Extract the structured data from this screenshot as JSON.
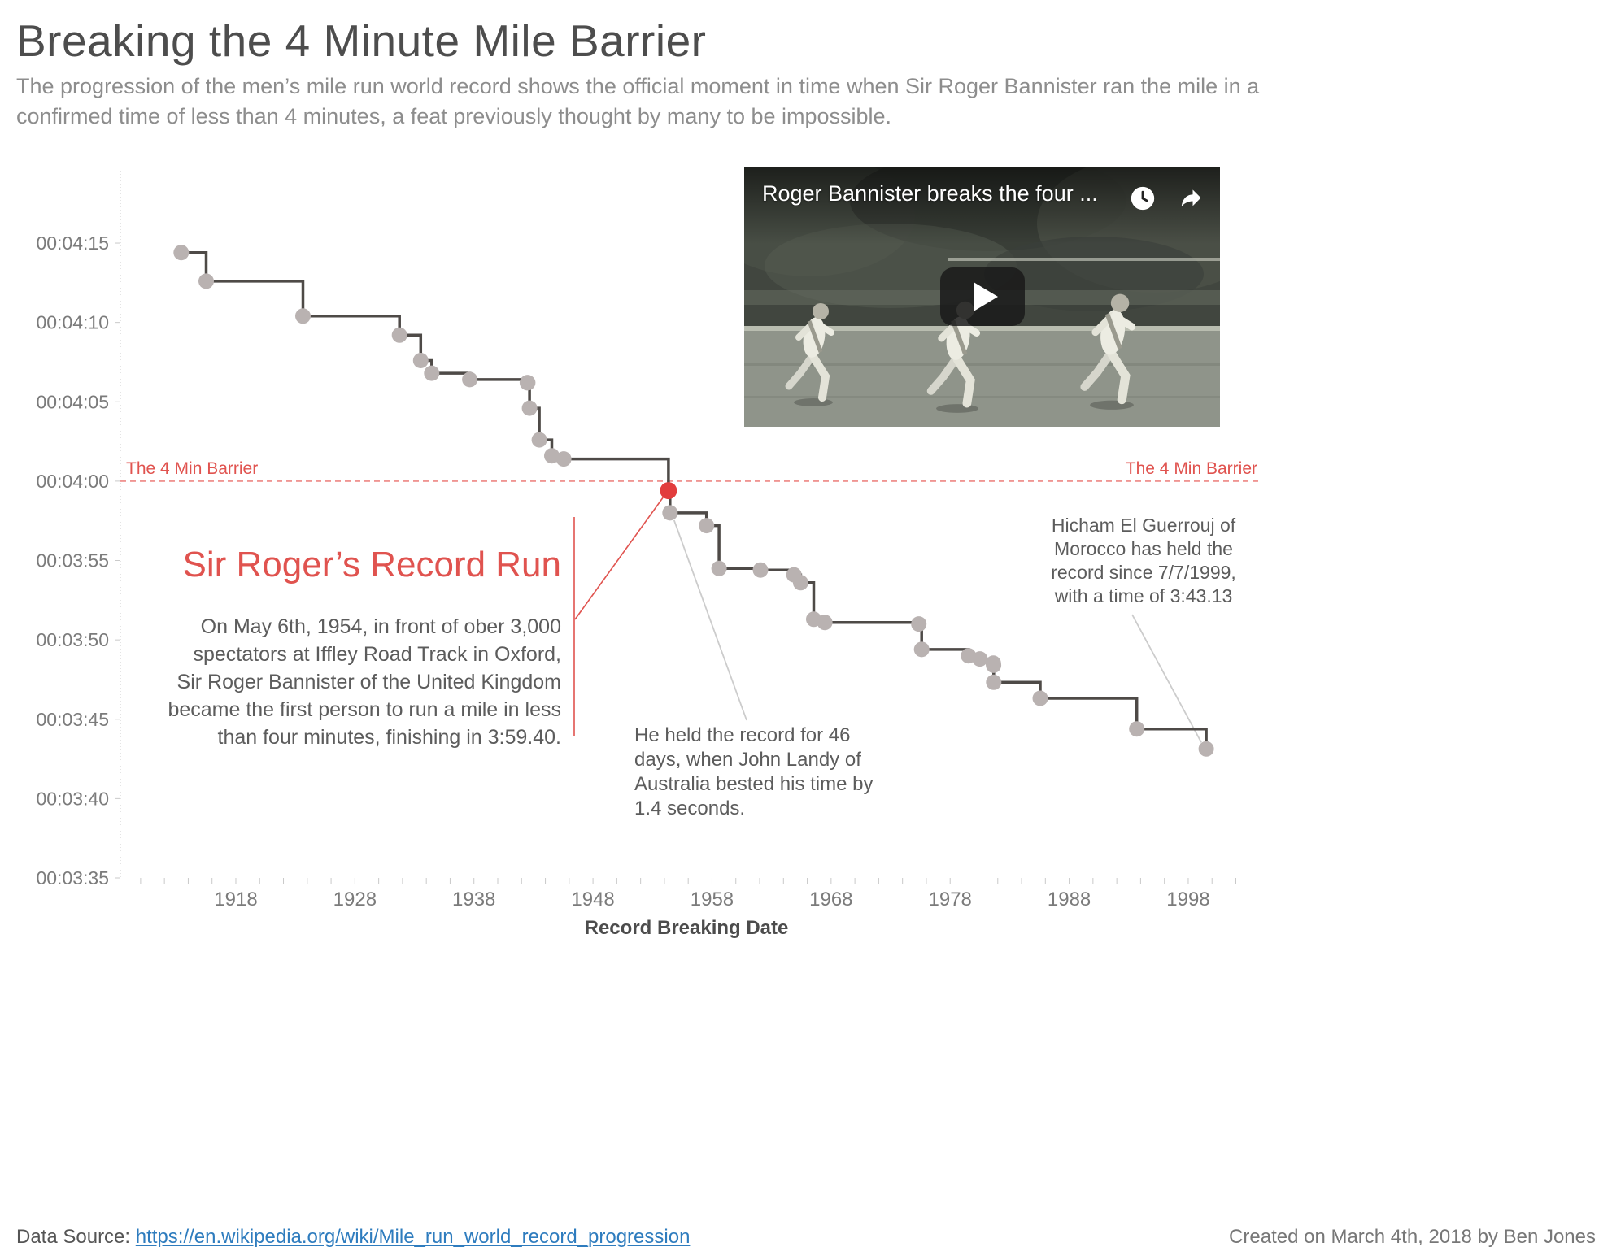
{
  "page": {
    "title": "Breaking the 4 Minute Mile Barrier",
    "subtitle": "The progression of the men’s mile run world record shows the official moment in time when Sir Roger Bannister ran the mile in a\nconfirmed time of less than 4 minutes, a feat previously thought by many to be impossible."
  },
  "video": {
    "title": "Roger Bannister breaks the four ..."
  },
  "chart_data": {
    "type": "line",
    "interpolation": "step-after",
    "title": "",
    "xlabel": "Record Breaking Date",
    "ylabel": "",
    "grid": false,
    "legend": false,
    "x_ticks": [
      "1918",
      "1928",
      "1938",
      "1948",
      "1958",
      "1968",
      "1978",
      "1988",
      "1998"
    ],
    "x_tick_years": [
      1918,
      1928,
      1938,
      1948,
      1958,
      1968,
      1978,
      1988,
      1998
    ],
    "x_minor": {
      "start": 1910,
      "end": 2002,
      "step": 2
    },
    "xlim": [
      1908.3,
      2003.4
    ],
    "y_ticks": [
      {
        "label": "00:04:15",
        "seconds": 255
      },
      {
        "label": "00:04:10",
        "seconds": 250
      },
      {
        "label": "00:04:05",
        "seconds": 245
      },
      {
        "label": "00:04:00",
        "seconds": 240
      },
      {
        "label": "00:03:55",
        "seconds": 235
      },
      {
        "label": "00:03:50",
        "seconds": 230
      },
      {
        "label": "00:03:45",
        "seconds": 225
      },
      {
        "label": "00:03:40",
        "seconds": 220
      },
      {
        "label": "00:03:35",
        "seconds": 215
      }
    ],
    "ylim_seconds": [
      215,
      259.56
    ],
    "barrier": {
      "seconds": 240,
      "label": "The 4 Min Barrier"
    },
    "highlight_index": 13,
    "points": [
      {
        "year": 1913.41,
        "seconds": 254.4,
        "time": "4:14.4"
      },
      {
        "year": 1915.51,
        "seconds": 252.6,
        "time": "4:12.6"
      },
      {
        "year": 1923.64,
        "seconds": 250.4,
        "time": "4:10.4"
      },
      {
        "year": 1931.75,
        "seconds": 249.2,
        "time": "4:09.2"
      },
      {
        "year": 1933.53,
        "seconds": 247.6,
        "time": "4:07.6"
      },
      {
        "year": 1934.45,
        "seconds": 246.8,
        "time": "4:06.8"
      },
      {
        "year": 1937.65,
        "seconds": 246.4,
        "time": "4:06.4"
      },
      {
        "year": 1942.49,
        "seconds": 246.2,
        "time": "4:06.2"
      },
      {
        "year": 1942.52,
        "seconds": 246.2,
        "time": "4:06.2"
      },
      {
        "year": 1942.67,
        "seconds": 244.6,
        "time": "4:04.6"
      },
      {
        "year": 1943.49,
        "seconds": 242.6,
        "time": "4:02.6"
      },
      {
        "year": 1944.54,
        "seconds": 241.6,
        "time": "4:01.6"
      },
      {
        "year": 1945.54,
        "seconds": 241.4,
        "time": "4:01.4"
      },
      {
        "year": 1954.34,
        "seconds": 239.4,
        "time": "3:59.4",
        "highlight": true
      },
      {
        "year": 1954.47,
        "seconds": 238.0,
        "time": "3:58.0"
      },
      {
        "year": 1957.54,
        "seconds": 237.2,
        "time": "3:57.2"
      },
      {
        "year": 1958.59,
        "seconds": 234.5,
        "time": "3:54.5"
      },
      {
        "year": 1962.07,
        "seconds": 234.4,
        "time": "3:54.4"
      },
      {
        "year": 1964.88,
        "seconds": 234.1,
        "time": "3:54.1"
      },
      {
        "year": 1965.44,
        "seconds": 233.6,
        "time": "3:53.6"
      },
      {
        "year": 1966.54,
        "seconds": 231.3,
        "time": "3:51.3"
      },
      {
        "year": 1967.47,
        "seconds": 231.1,
        "time": "3:51.1"
      },
      {
        "year": 1975.37,
        "seconds": 231.0,
        "time": "3:51.0"
      },
      {
        "year": 1975.61,
        "seconds": 229.4,
        "time": "3:49.4"
      },
      {
        "year": 1979.54,
        "seconds": 229.0,
        "time": "3:49.0"
      },
      {
        "year": 1980.5,
        "seconds": 228.8,
        "time": "3:48.8"
      },
      {
        "year": 1981.63,
        "seconds": 228.53,
        "time": "3:48.53"
      },
      {
        "year": 1981.65,
        "seconds": 228.4,
        "time": "3:48.40"
      },
      {
        "year": 1981.66,
        "seconds": 227.33,
        "time": "3:47.33"
      },
      {
        "year": 1985.57,
        "seconds": 226.32,
        "time": "3:46.32"
      },
      {
        "year": 1993.68,
        "seconds": 224.39,
        "time": "3:44.39"
      },
      {
        "year": 1999.51,
        "seconds": 223.13,
        "time": "3:43.13"
      }
    ]
  },
  "annotations": {
    "bannister": {
      "title": "Sir Roger’s Record Run",
      "body": "On May 6th, 1954, in front of ober 3,000\nspectators at Iffley Road Track in Oxford,\nSir Roger Bannister of the United Kingdom\nbecame the first person to run a mile in less\nthan four minutes, finishing in 3:59.40."
    },
    "landy": {
      "text": "He held the record for 46\ndays, when John Landy of\nAustralia bested his time by\n1.4 seconds."
    },
    "guerrouj": {
      "text": "Hicham El Guerrouj of\nMorocco has held the\nrecord since 7/7/1999,\nwith a time of 3:43.13"
    }
  },
  "footer": {
    "source_label": "Data Source: ",
    "source_link": "https://en.wikipedia.org/wiki/Mile_run_world_record_progression",
    "credit": "Created on March 4th, 2018 by Ben Jones"
  },
  "colors": {
    "accent_red": "#e0534f",
    "dot_red": "#e23d3d",
    "barrier_line": "#ed8683",
    "line": "#4e4a47",
    "dot": "#b9b2b1",
    "axis_text": "#7b7b7b",
    "axis_line": "#c9c9c9",
    "connector": "#cccccc"
  }
}
